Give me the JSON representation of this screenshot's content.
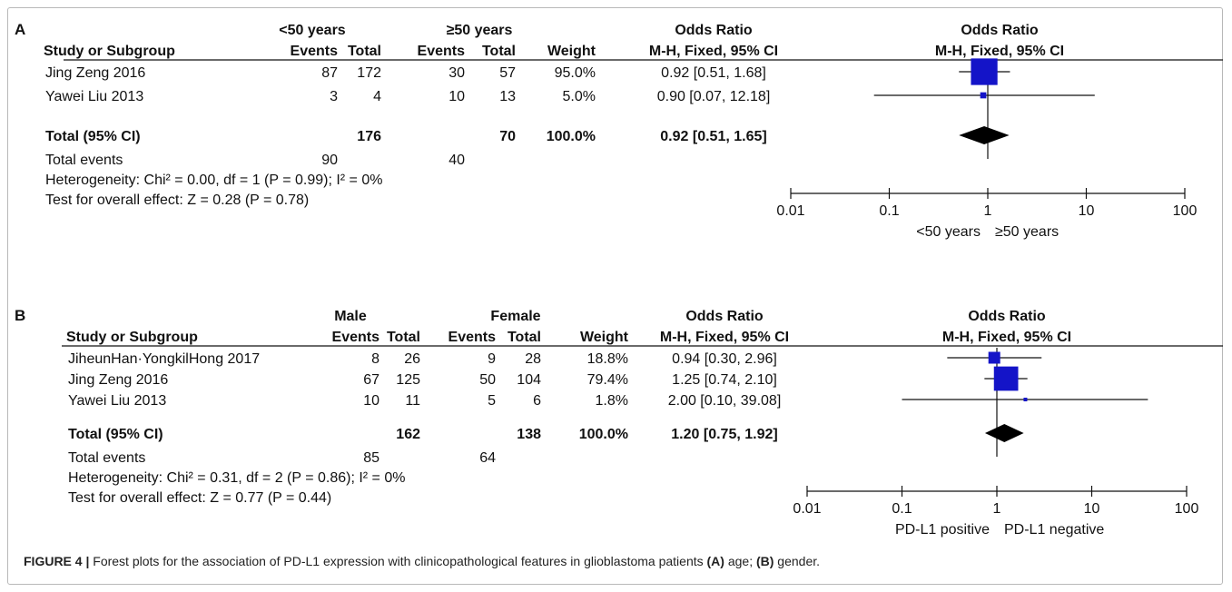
{
  "caption": {
    "figure_label": "FIGURE 4 |",
    "text_1": " Forest plots for the association of PD-L1 expression with clinicopathological features in glioblastoma patients ",
    "label_a": "(A)",
    "text_2": " age; ",
    "label_b": "(B)",
    "text_3": " gender."
  },
  "chart_data": [
    {
      "type": "forest",
      "panel": "A",
      "group1_label": "<50 years",
      "group2_label": "≥50 years",
      "col_headers": {
        "study": "Study or Subgroup",
        "events": "Events",
        "total": "Total",
        "weight": "Weight",
        "or_title": "Odds Ratio",
        "or_method": "M-H, Fixed, 95% CI"
      },
      "studies": [
        {
          "name": "Jing Zeng 2016",
          "e1": "87",
          "t1": "172",
          "e2": "30",
          "t2": "57",
          "weight": "95.0%",
          "ci_text": "0.92 [0.51, 1.68]",
          "or": 0.92,
          "lo": 0.51,
          "hi": 1.68,
          "w": 95.0
        },
        {
          "name": "Yawei Liu 2013",
          "e1": "3",
          "t1": "4",
          "e2": "10",
          "t2": "13",
          "weight": "5.0%",
          "ci_text": "0.90 [0.07, 12.18]",
          "or": 0.9,
          "lo": 0.07,
          "hi": 12.18,
          "w": 5.0
        }
      ],
      "total": {
        "name": "Total (95% CI)",
        "t1": "176",
        "t2": "70",
        "weight": "100.0%",
        "ci_text": "0.92 [0.51, 1.65]",
        "or": 0.92,
        "lo": 0.51,
        "hi": 1.65
      },
      "total_events": {
        "label": "Total events",
        "e1": "90",
        "e2": "40"
      },
      "heterogeneity": "Heterogeneity: Chi² = 0.00, df = 1 (P = 0.99); I² = 0%",
      "overall_effect": "Test for overall effect: Z = 0.28 (P = 0.78)",
      "axis": {
        "scale": "log",
        "ticks": [
          0.01,
          0.1,
          1,
          10,
          100
        ],
        "tick_labels": [
          "0.01",
          "0.1",
          "1",
          "10",
          "100"
        ]
      },
      "favours_left": "<50 years",
      "favours_right": "≥50 years",
      "colors": {
        "marker": "#1414c8",
        "total": "#000000"
      }
    },
    {
      "type": "forest",
      "panel": "B",
      "group1_label": "Male",
      "group2_label": "Female",
      "col_headers": {
        "study": "Study or Subgroup",
        "events": "Events",
        "total": "Total",
        "weight": "Weight",
        "or_title": "Odds Ratio",
        "or_method": "M-H, Fixed, 95% CI"
      },
      "studies": [
        {
          "name": "JiheunHan·YongkilHong 2017",
          "e1": "8",
          "t1": "26",
          "e2": "9",
          "t2": "28",
          "weight": "18.8%",
          "ci_text": "0.94 [0.30, 2.96]",
          "or": 0.94,
          "lo": 0.3,
          "hi": 2.96,
          "w": 18.8
        },
        {
          "name": "Jing Zeng 2016",
          "e1": "67",
          "t1": "125",
          "e2": "50",
          "t2": "104",
          "weight": "79.4%",
          "ci_text": "1.25 [0.74, 2.10]",
          "or": 1.25,
          "lo": 0.74,
          "hi": 2.1,
          "w": 79.4
        },
        {
          "name": "Yawei Liu 2013",
          "e1": "10",
          "t1": "11",
          "e2": "5",
          "t2": "6",
          "weight": "1.8%",
          "ci_text": "2.00 [0.10, 39.08]",
          "or": 2.0,
          "lo": 0.1,
          "hi": 39.08,
          "w": 1.8
        }
      ],
      "total": {
        "name": "Total (95% CI)",
        "t1": "162",
        "t2": "138",
        "weight": "100.0%",
        "ci_text": "1.20 [0.75, 1.92]",
        "or": 1.2,
        "lo": 0.75,
        "hi": 1.92
      },
      "total_events": {
        "label": "Total events",
        "e1": "85",
        "e2": "64"
      },
      "heterogeneity": "Heterogeneity: Chi² = 0.31, df = 2 (P = 0.86); I² = 0%",
      "overall_effect": "Test for overall effect: Z = 0.77 (P = 0.44)",
      "axis": {
        "scale": "log",
        "ticks": [
          0.01,
          0.1,
          1,
          10,
          100
        ],
        "tick_labels": [
          "0.01",
          "0.1",
          "1",
          "10",
          "100"
        ]
      },
      "favours_left": "PD-L1 positive",
      "favours_right": "PD-L1 negative",
      "colors": {
        "marker": "#1414c8",
        "total": "#000000"
      }
    }
  ]
}
